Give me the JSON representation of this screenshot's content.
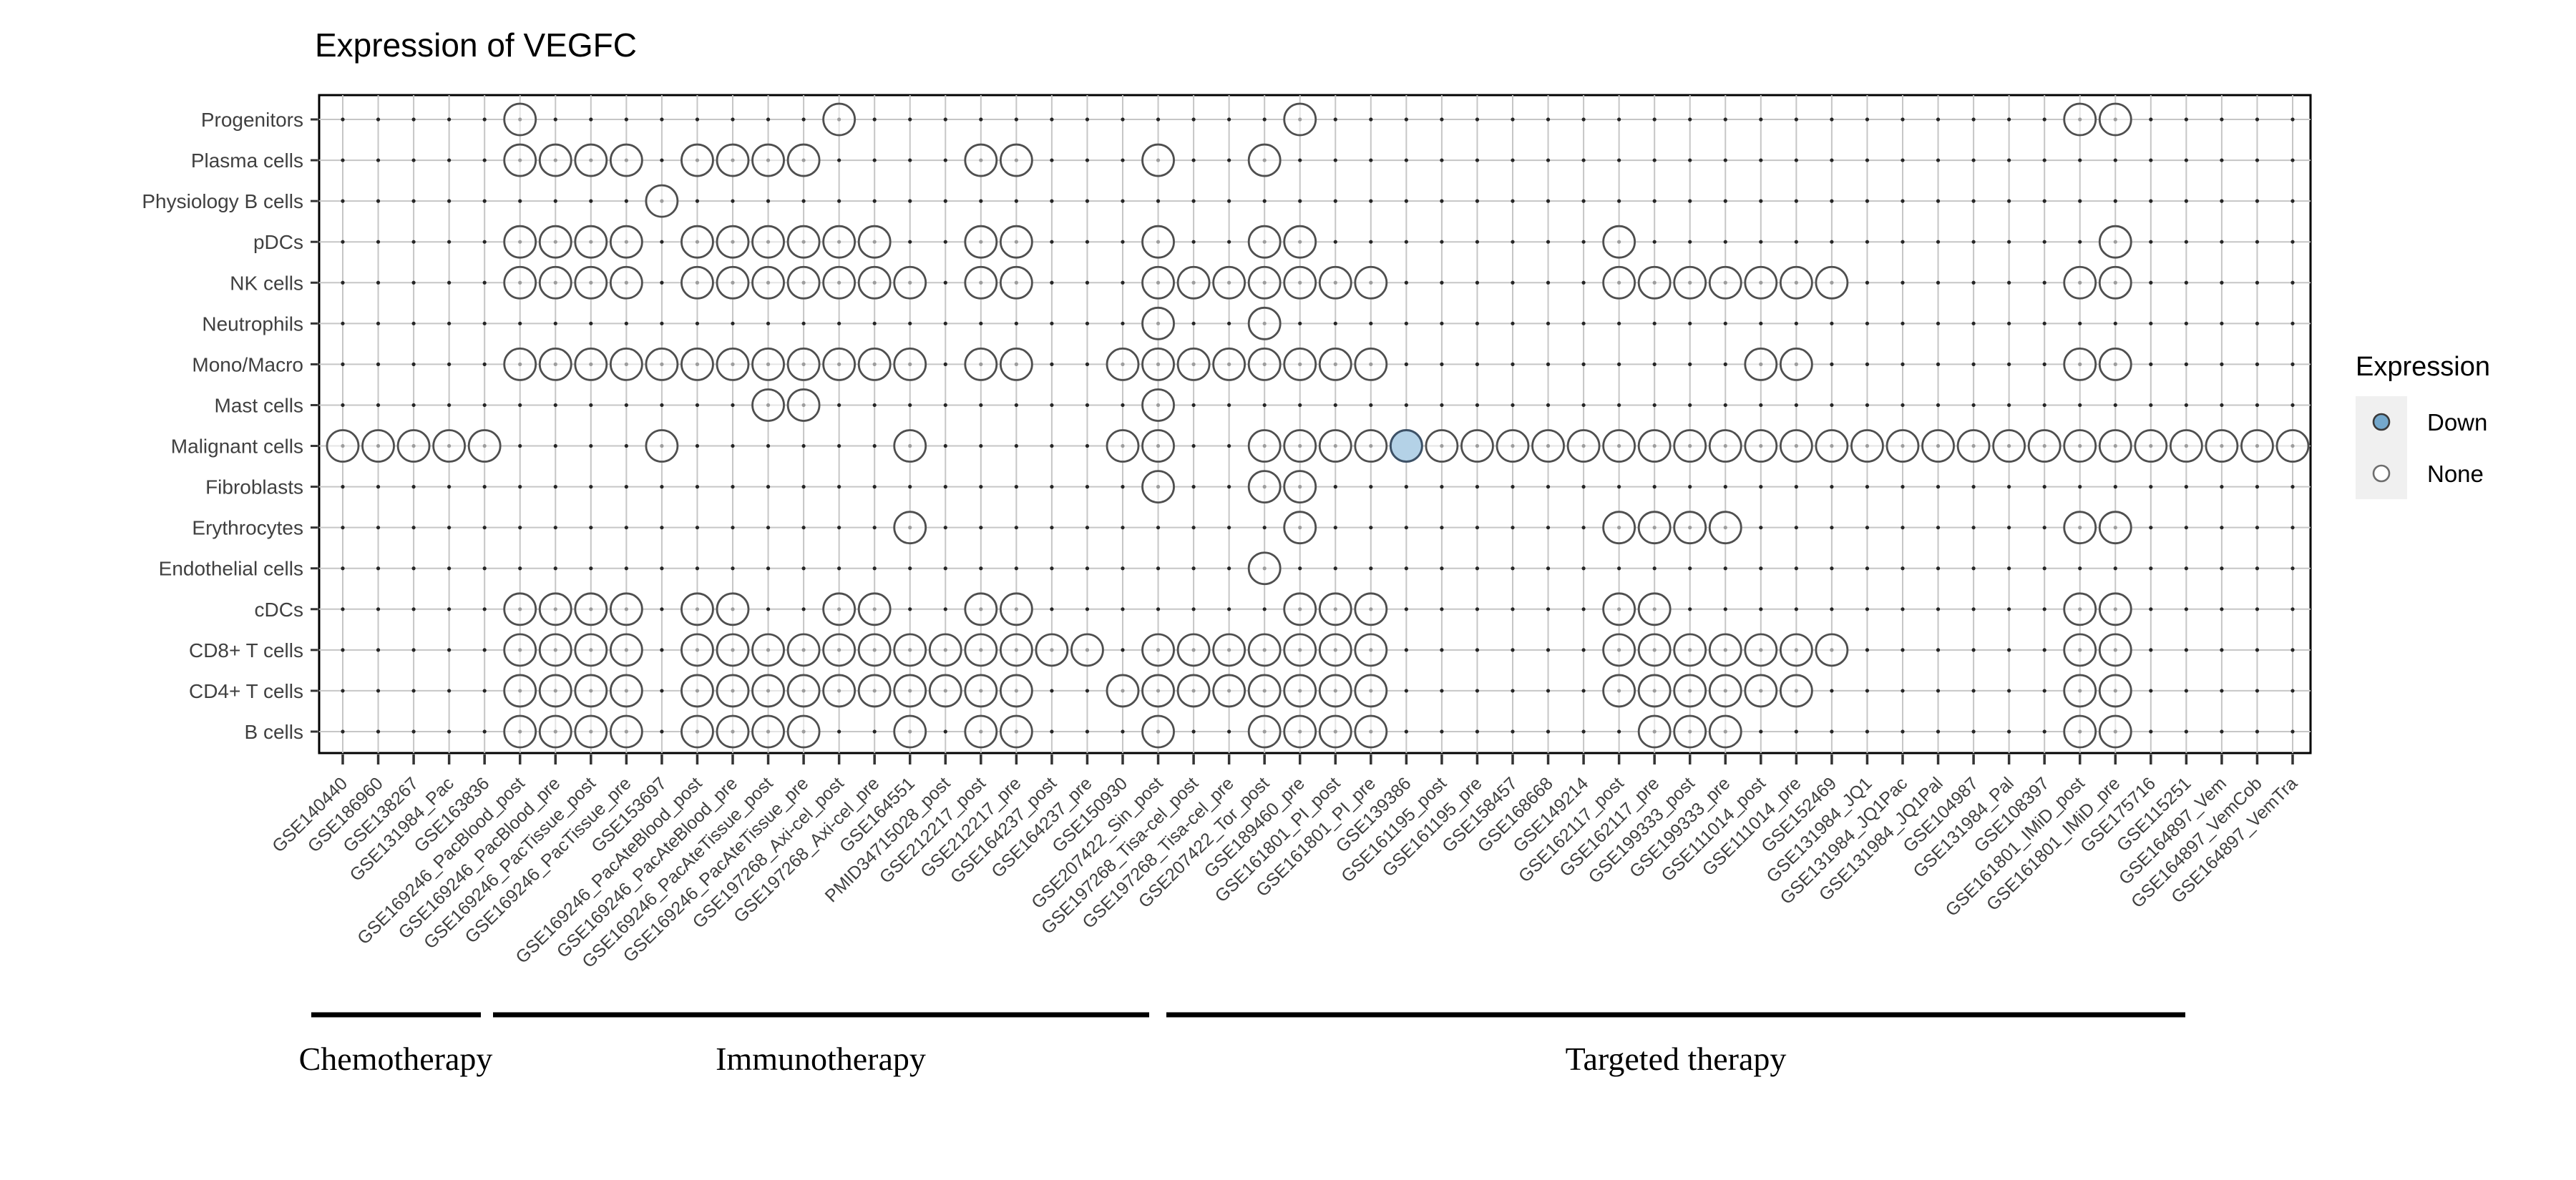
{
  "chart_data": {
    "type": "scatter",
    "title": "Expression of VEGFC",
    "xlabel": "",
    "ylabel": "",
    "grid": true,
    "legend_position": "right",
    "y_categories": [
      "Progenitors",
      "Plasma cells",
      "Physiology B cells",
      "pDCs",
      "NK cells",
      "Neutrophils",
      "Mono/Macro",
      "Mast cells",
      "Malignant cells",
      "Fibroblasts",
      "Erythrocytes",
      "Endothelial cells",
      "cDCs",
      "CD8+ T cells",
      "CD4+ T cells",
      "B cells"
    ],
    "x_categories": [
      "GSE140440",
      "GSE186960",
      "GSE138267",
      "GSE131984_Pac",
      "GSE163836",
      "GSE169246_PacBlood_post",
      "GSE169246_PacBlood_pre",
      "GSE169246_PacTissue_post",
      "GSE169246_PacTissue_pre",
      "GSE153697",
      "GSE169246_PacAteBlood_post",
      "GSE169246_PacAteBlood_pre",
      "GSE169246_PacAteTissue_post",
      "GSE169246_PacAteTissue_pre",
      "GSE197268_Axi-cel_post",
      "GSE197268_Axi-cel_pre",
      "GSE164551",
      "PMID34715028_post",
      "GSE212217_post",
      "GSE212217_pre",
      "GSE164237_post",
      "GSE164237_pre",
      "GSE150930",
      "GSE207422_Sin_post",
      "GSE197268_Tisa-cel_post",
      "GSE197268_Tisa-cel_pre",
      "GSE207422_Tor_post",
      "GSE189460_pre",
      "GSE161801_PI_post",
      "GSE161801_PI_pre",
      "GSE139386",
      "GSE161195_post",
      "GSE161195_pre",
      "GSE158457",
      "GSE168668",
      "GSE149214",
      "GSE162117_post",
      "GSE162117_pre",
      "GSE199333_post",
      "GSE199333_pre",
      "GSE111014_post",
      "GSE111014_pre",
      "GSE152469",
      "GSE131984_JQ1",
      "GSE131984_JQ1Pac",
      "GSE131984_JQ1Pal",
      "GSE104987",
      "GSE131984_Pal",
      "GSE108397",
      "GSE161801_IMiD_post",
      "GSE161801_IMiD_pre",
      "GSE175716",
      "GSE115251",
      "GSE164897_Vem",
      "GSE164897_VemCob",
      "GSE164897_VemTra"
    ],
    "dots_none_by_row": [
      [
        5,
        14,
        27,
        49,
        50
      ],
      [
        5,
        6,
        7,
        8,
        10,
        11,
        12,
        13,
        18,
        19,
        23,
        26
      ],
      [
        9
      ],
      [
        5,
        6,
        7,
        8,
        10,
        11,
        12,
        13,
        14,
        15,
        18,
        19,
        23,
        26,
        27,
        36,
        50
      ],
      [
        5,
        6,
        7,
        8,
        10,
        11,
        12,
        13,
        14,
        15,
        16,
        18,
        19,
        23,
        24,
        25,
        26,
        27,
        28,
        29,
        36,
        37,
        38,
        39,
        40,
        41,
        42,
        49,
        50
      ],
      [
        23,
        26
      ],
      [
        5,
        6,
        7,
        8,
        9,
        10,
        11,
        12,
        13,
        14,
        15,
        16,
        18,
        19,
        22,
        23,
        24,
        25,
        26,
        27,
        28,
        29,
        40,
        41,
        49,
        50
      ],
      [
        12,
        13,
        23
      ],
      [
        0,
        1,
        2,
        3,
        4,
        9,
        16,
        22,
        23,
        26,
        27,
        28,
        29,
        31,
        32,
        33,
        34,
        35,
        36,
        37,
        38,
        39,
        40,
        41,
        42,
        43,
        44,
        45,
        46,
        47,
        48,
        49,
        50,
        51,
        52,
        53,
        54,
        55
      ],
      [
        23,
        26,
        27
      ],
      [
        16,
        27,
        36,
        37,
        38,
        39,
        49,
        50
      ],
      [
        26
      ],
      [
        5,
        6,
        7,
        8,
        10,
        11,
        14,
        15,
        18,
        19,
        27,
        28,
        29,
        36,
        37,
        49,
        50
      ],
      [
        5,
        6,
        7,
        8,
        10,
        11,
        12,
        13,
        14,
        15,
        16,
        17,
        18,
        19,
        20,
        21,
        23,
        24,
        25,
        26,
        27,
        28,
        29,
        36,
        37,
        38,
        39,
        40,
        41,
        42,
        49,
        50
      ],
      [
        5,
        6,
        7,
        8,
        10,
        11,
        12,
        13,
        14,
        15,
        16,
        17,
        18,
        19,
        22,
        23,
        24,
        25,
        26,
        27,
        28,
        29,
        36,
        37,
        38,
        39,
        40,
        41,
        49,
        50
      ],
      [
        5,
        6,
        7,
        8,
        10,
        11,
        12,
        13,
        16,
        18,
        19,
        23,
        26,
        27,
        28,
        29,
        37,
        38,
        39,
        49,
        50
      ]
    ],
    "dots_down": [
      {
        "row": 8,
        "col": 30
      }
    ],
    "legend": {
      "title": "Expression",
      "items": [
        {
          "label": "Down",
          "fill": "#74a8cc",
          "stroke": "#3a3a3a"
        },
        {
          "label": "None",
          "fill": "#ffffff",
          "stroke": "#6e6e6e"
        }
      ]
    },
    "groups": [
      {
        "label": "Chemotherapy",
        "col_start": 0,
        "col_end": 4
      },
      {
        "label": "Immunotherapy",
        "col_start": 5,
        "col_end": 22
      },
      {
        "label": "Targeted therapy",
        "col_start": 23,
        "col_end": 52
      }
    ],
    "colors": {
      "none_fill": "rgba(255,255,255,0.55)",
      "none_stroke": "#4f4f4f",
      "down_fill": "#b4d2e7",
      "down_stroke": "#3d5166",
      "grid": "#c6c6c6",
      "grid_dot": "#262626",
      "panel_border": "#000000",
      "axis_text": "#404040",
      "tick": "#333333",
      "legend_key_bg": "#f0f0f0"
    }
  }
}
